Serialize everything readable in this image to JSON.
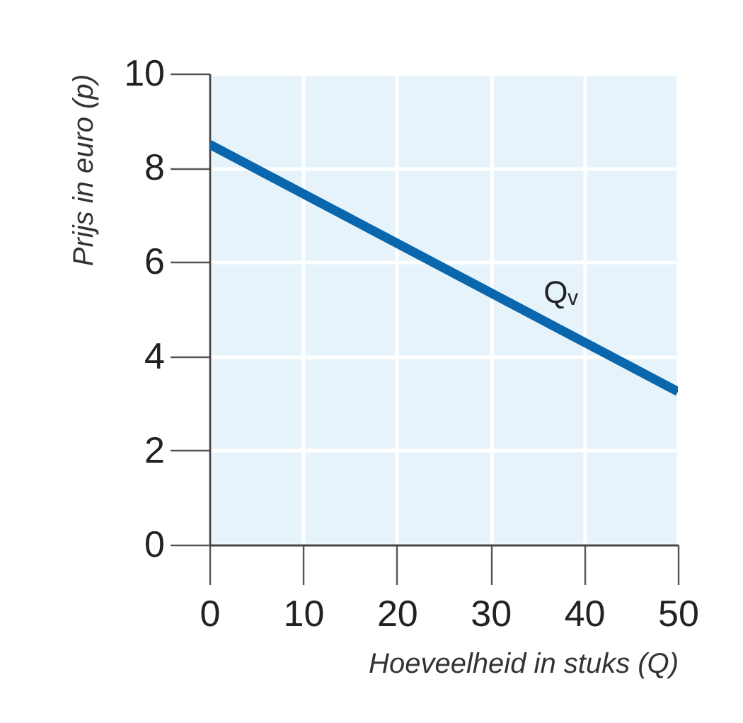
{
  "chart_data": {
    "type": "line",
    "xlabel": "Hoeveelheid in stuks (Q)",
    "ylabel": "Prijs in euro (p)",
    "x": [
      0,
      50
    ],
    "series": [
      {
        "name": "Qᵥ",
        "color": "#0b67ad",
        "values": [
          8.5,
          3.25
        ]
      }
    ],
    "xlim": [
      0,
      50
    ],
    "ylim": [
      0,
      10
    ],
    "xticks": [
      0,
      10,
      20,
      30,
      40,
      50
    ],
    "yticks": [
      0,
      2,
      4,
      6,
      8,
      10
    ],
    "grid": true,
    "line_style": "solid"
  }
}
